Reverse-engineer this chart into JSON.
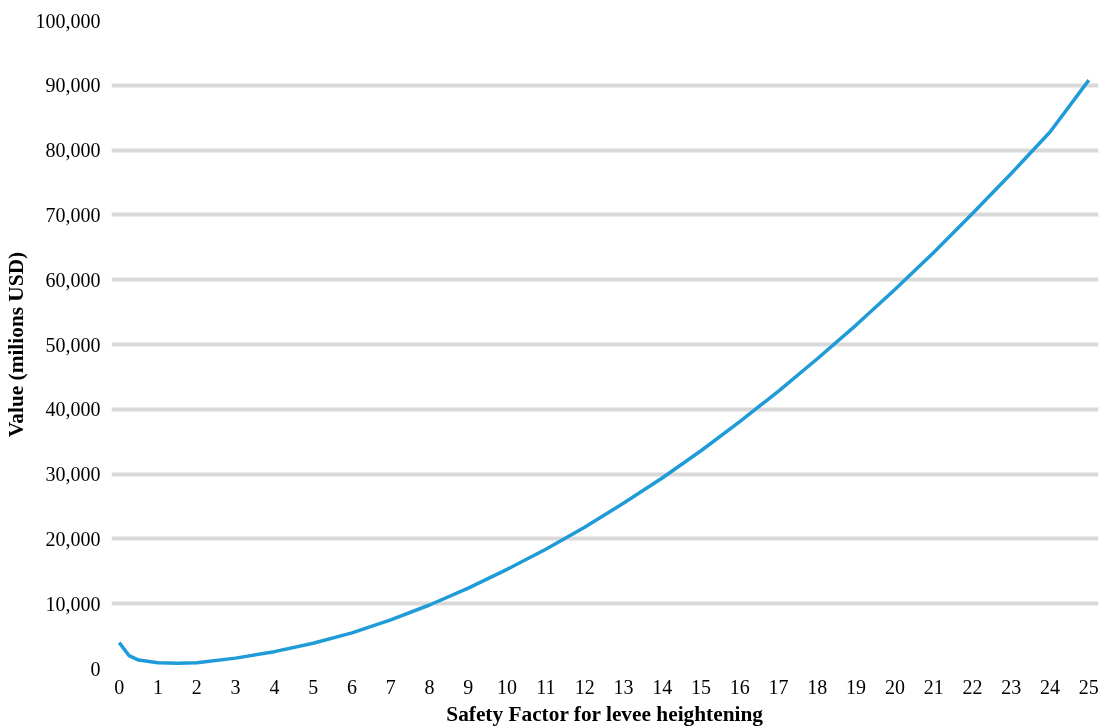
{
  "chart_data": {
    "type": "line",
    "xlabel": "Safety Factor for levee heightening",
    "ylabel": "Value (milions USD)",
    "x": [
      0,
      0.25,
      0.5,
      1,
      1.5,
      2,
      3,
      4,
      5,
      6,
      7,
      8,
      9,
      10,
      11,
      12,
      13,
      14,
      15,
      16,
      17,
      18,
      19,
      20,
      21,
      22,
      23,
      24,
      25
    ],
    "series": [
      {
        "color": "#1f9bd7",
        "values": [
          4000,
          2000,
          1300,
          900,
          800,
          900,
          1600,
          2600,
          3900,
          5500,
          7500,
          9800,
          12400,
          15300,
          18400,
          21800,
          25500,
          29400,
          33600,
          38100,
          42800,
          47800,
          53000,
          58500,
          64200,
          70200,
          76400,
          82800,
          90800
        ]
      }
    ],
    "xlim": [
      -0.2,
      25.25
    ],
    "xticks": [
      0,
      1,
      2,
      3,
      4,
      5,
      6,
      7,
      8,
      9,
      10,
      11,
      12,
      13,
      14,
      15,
      16,
      17,
      18,
      19,
      20,
      21,
      22,
      23,
      24,
      25
    ],
    "ylim": [
      0,
      100000
    ],
    "yticks": [
      {
        "value": 0,
        "label": "0"
      },
      {
        "value": 10000,
        "label": "10,000"
      },
      {
        "value": 20000,
        "label": "20,000"
      },
      {
        "value": 30000,
        "label": "30,000"
      },
      {
        "value": 40000,
        "label": "40,000"
      },
      {
        "value": 50000,
        "label": "50,000"
      },
      {
        "value": 60000,
        "label": "60,000"
      },
      {
        "value": 70000,
        "label": "70,000"
      },
      {
        "value": 80000,
        "label": "80,000"
      },
      {
        "value": 90000,
        "label": "90,000"
      },
      {
        "value": 100000,
        "label": "100,000"
      }
    ],
    "grid": "y",
    "marker": "none",
    "line_style": "solid"
  }
}
